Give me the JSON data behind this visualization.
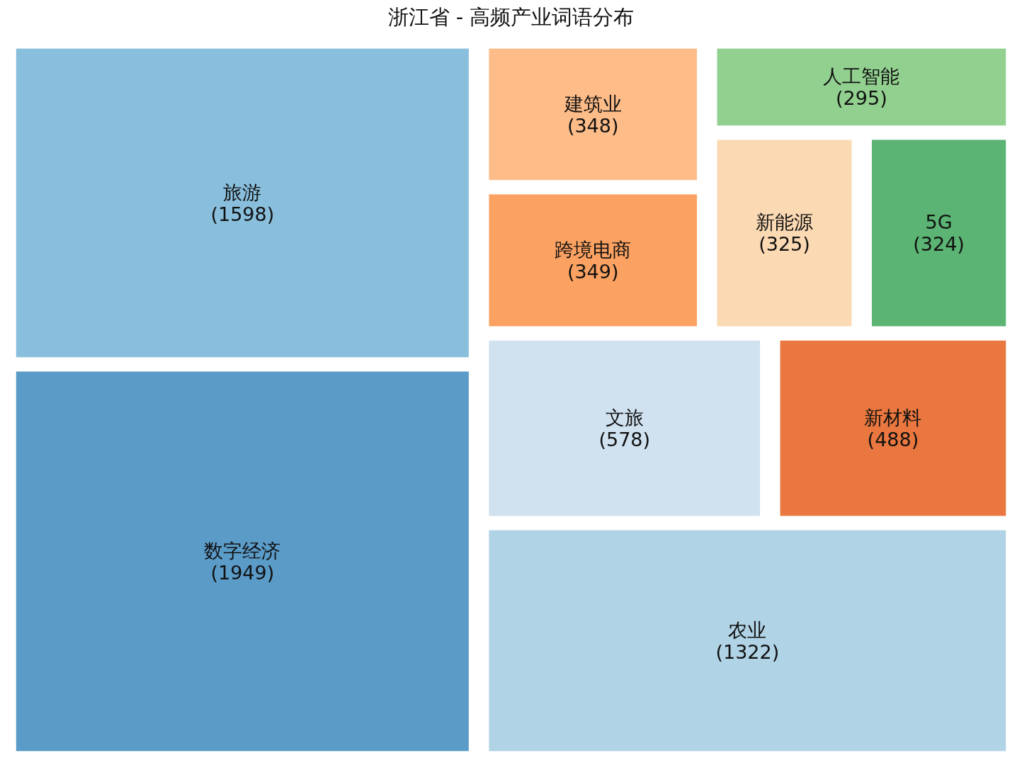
{
  "chart_data": {
    "type": "other",
    "title": "浙江省 - 高频产业词语分布",
    "categories": [
      "数字经济",
      "旅游",
      "农业",
      "文旅",
      "新材料",
      "跨境电商",
      "建筑业",
      "新能源",
      "5G",
      "人工智能"
    ],
    "values": [
      1949,
      1598,
      1322,
      578,
      488,
      349,
      348,
      325,
      324,
      295
    ],
    "value_labels": [
      "(1949)",
      "(1598)",
      "(1322)",
      "(578)",
      "(488)",
      "(349)",
      "(348)",
      "(325)",
      "(324)",
      "(295)"
    ],
    "colors": [
      "#5b9bc8",
      "#89bfdd",
      "#b0d3e6",
      "#d0e1f0",
      "#e9773f",
      "#fba262",
      "#fdbc88",
      "#fbd9b3",
      "#5bb473",
      "#92d08f"
    ]
  }
}
